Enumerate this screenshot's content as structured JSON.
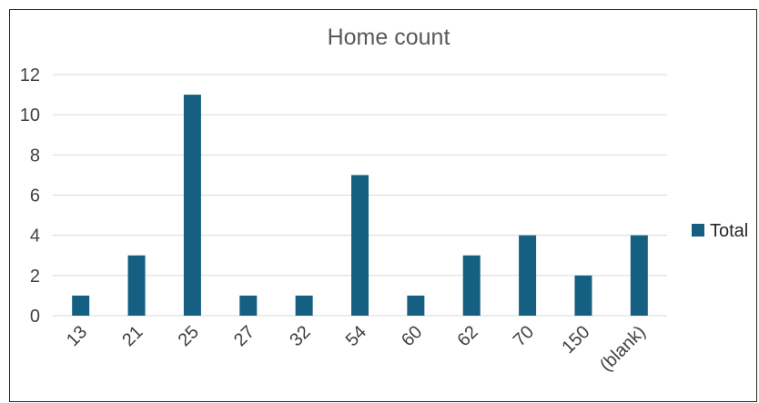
{
  "chart_data": {
    "type": "bar",
    "title": "Home count",
    "categories": [
      "13",
      "21",
      "25",
      "27",
      "32",
      "54",
      "60",
      "62",
      "70",
      "150",
      "(blank)"
    ],
    "series": [
      {
        "name": "Total",
        "values": [
          1,
          3,
          11,
          1,
          1,
          7,
          1,
          3,
          4,
          2,
          4
        ],
        "color": "#156082"
      }
    ],
    "ylim": [
      0,
      12
    ],
    "yticks": [
      0,
      2,
      4,
      6,
      8,
      10,
      12
    ],
    "grid": true,
    "legend_position": "right"
  }
}
